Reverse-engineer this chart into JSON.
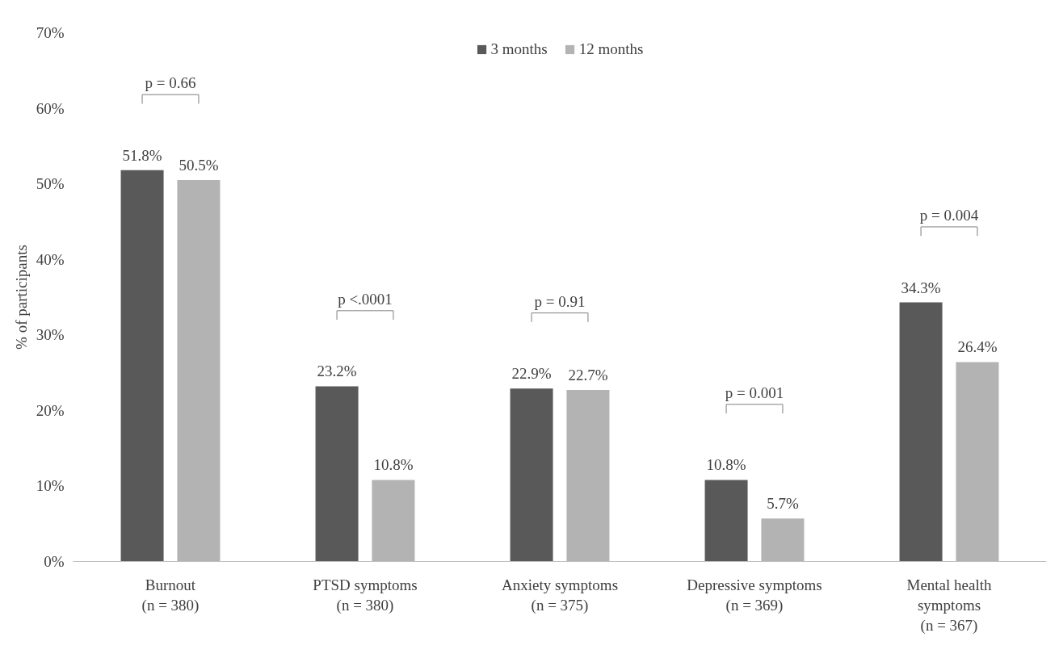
{
  "chart_data": {
    "type": "bar",
    "ylabel": "% of participants",
    "categories": [
      "Burnout\n(n = 380)",
      "PTSD symptoms\n(n = 380)",
      "Anxiety symptoms\n(n = 375)",
      "Depressive symptoms\n(n = 369)",
      "Mental health\nsymptoms\n(n = 367)"
    ],
    "series": [
      {
        "name": "3 months",
        "color": "#595959",
        "values": [
          51.8,
          23.2,
          22.9,
          10.8,
          34.3
        ],
        "value_labels": [
          "51.8%",
          "23.2%",
          "22.9%",
          "10.8%",
          "34.3%"
        ]
      },
      {
        "name": "12 months",
        "color": "#b3b3b3",
        "values": [
          50.5,
          10.8,
          22.7,
          5.7,
          26.4
        ],
        "value_labels": [
          "50.5%",
          "10.8%",
          "22.7%",
          "5.7%",
          "26.4%"
        ]
      }
    ],
    "ylim": [
      0,
      70
    ],
    "yticks": [
      {
        "value": 0,
        "label": "0%"
      },
      {
        "value": 10,
        "label": "10%"
      },
      {
        "value": 20,
        "label": "20%"
      },
      {
        "value": 30,
        "label": "30%"
      },
      {
        "value": 40,
        "label": "40%"
      },
      {
        "value": 50,
        "label": "50%"
      },
      {
        "value": 60,
        "label": "60%"
      },
      {
        "value": 70,
        "label": "70%"
      }
    ],
    "annotations": [
      "p = 0.66",
      "p <.0001",
      "p = 0.91",
      "p = 0.001",
      "p = 0.004"
    ],
    "legend": "top",
    "grid": false
  }
}
